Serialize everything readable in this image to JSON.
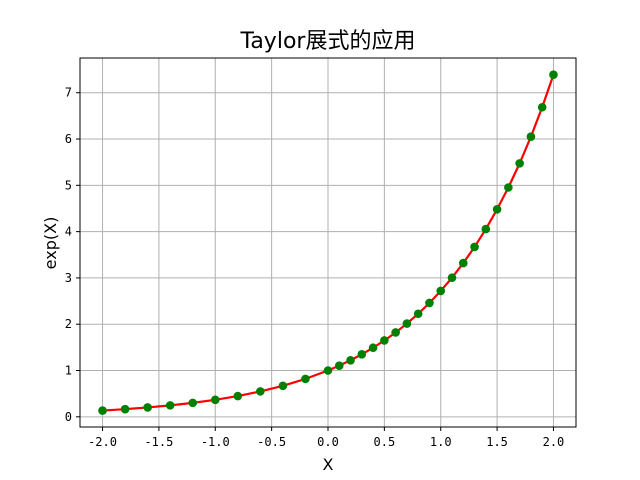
{
  "chart_data": {
    "type": "line",
    "title": "Taylor展式的应用",
    "xlabel": "X",
    "ylabel": "exp(X)",
    "xlim": [
      -2.2,
      2.2
    ],
    "ylim": [
      -0.22,
      7.75
    ],
    "xticks": [
      -2.0,
      -1.5,
      -1.0,
      -0.5,
      0.0,
      0.5,
      1.0,
      1.5,
      2.0
    ],
    "xtick_labels": [
      "-2.0",
      "-1.5",
      "-1.0",
      "-0.5",
      "0.0",
      "0.5",
      "1.0",
      "1.5",
      "2.0"
    ],
    "yticks": [
      0,
      1,
      2,
      3,
      4,
      5,
      6,
      7
    ],
    "ytick_labels": [
      "0",
      "1",
      "2",
      "3",
      "4",
      "5",
      "6",
      "7"
    ],
    "grid": true,
    "series": [
      {
        "style": "line+markers",
        "line_color": "#ff0000",
        "marker_color": "#008000",
        "x": [
          -2.0,
          -1.8,
          -1.6,
          -1.4,
          -1.2,
          -1.0,
          -0.8,
          -0.6,
          -0.4,
          -0.2,
          0.0,
          0.1,
          0.2,
          0.3,
          0.4,
          0.5,
          0.6,
          0.7,
          0.8,
          0.9,
          1.0,
          1.1,
          1.2,
          1.3,
          1.4,
          1.5,
          1.6,
          1.7,
          1.8,
          1.9,
          2.0
        ],
        "y": [
          0.135,
          0.165,
          0.202,
          0.247,
          0.301,
          0.368,
          0.449,
          0.549,
          0.67,
          0.819,
          1.0,
          1.105,
          1.221,
          1.35,
          1.492,
          1.649,
          1.822,
          2.014,
          2.226,
          2.46,
          2.718,
          3.004,
          3.32,
          3.669,
          4.055,
          4.482,
          4.953,
          5.474,
          6.05,
          6.686,
          7.389
        ]
      }
    ]
  }
}
